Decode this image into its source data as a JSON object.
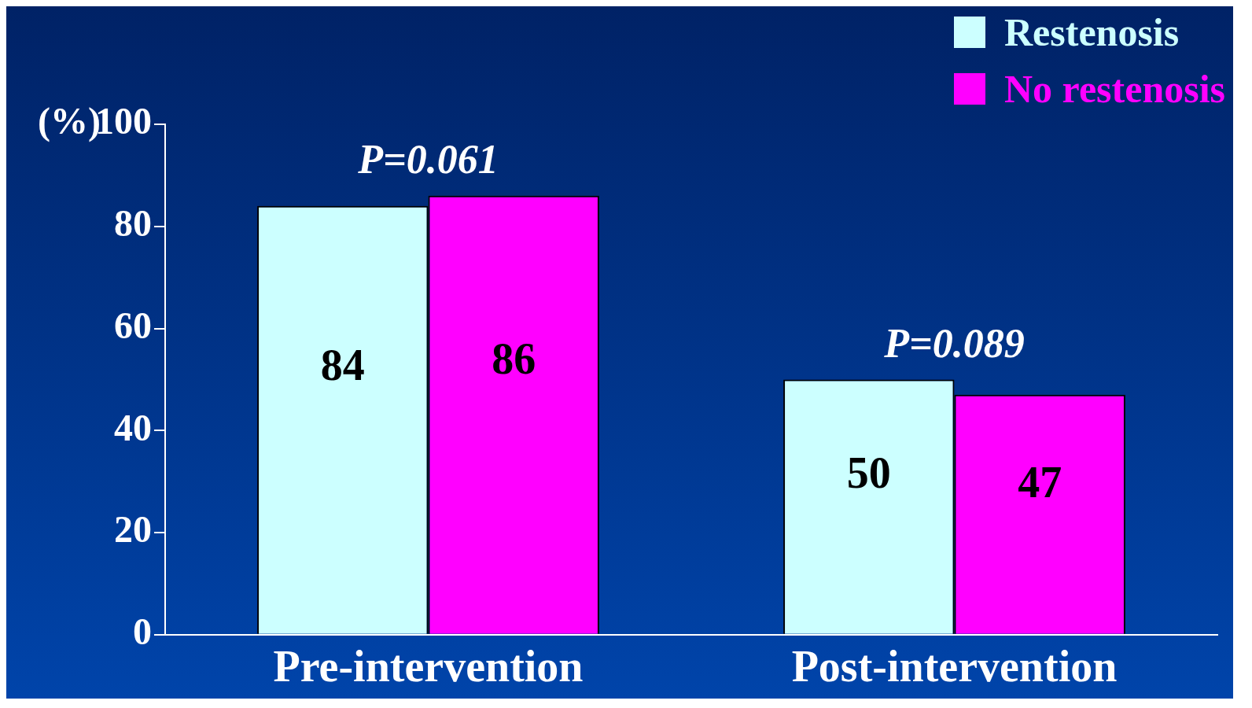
{
  "chart_data": {
    "type": "bar",
    "ylabel": "(%)",
    "categories": [
      "Pre-intervention",
      "Post-intervention"
    ],
    "series": [
      {
        "name": "Restenosis",
        "color": "#ccffff",
        "values": [
          84,
          50
        ]
      },
      {
        "name": "No restenosis",
        "color": "#ff00ff",
        "values": [
          86,
          47
        ]
      }
    ],
    "ylim": [
      0,
      100
    ],
    "yticks": [
      0,
      20,
      40,
      60,
      80,
      100
    ],
    "grid": false,
    "legend": "top right",
    "data_labels": true,
    "annotations": [
      "P=0.061",
      "P=0.089"
    ]
  }
}
